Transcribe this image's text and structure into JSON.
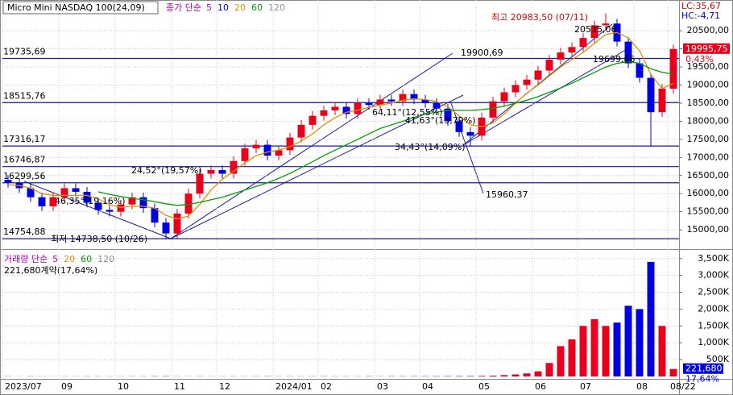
{
  "header": {
    "title": "Micro Mini NASDAQ 100(24,09)",
    "lc": "LC:35,67",
    "hc": "HC:-4,71"
  },
  "chart_data": [
    {
      "type": "candlestick",
      "legend_title": "종가 단순",
      "legend": [
        {
          "label": "5",
          "color": "#c000c0"
        },
        {
          "label": "10",
          "color": "#0000ff"
        },
        {
          "label": "20",
          "color": "#e09000"
        },
        {
          "label": "60",
          "color": "#00a000"
        },
        {
          "label": "120",
          "color": "#909090"
        }
      ],
      "categories": [
        "2023/07",
        null,
        null,
        null,
        null,
        "09",
        null,
        null,
        null,
        null,
        "10",
        null,
        null,
        null,
        null,
        "11",
        null,
        null,
        null,
        "12",
        null,
        null,
        null,
        null,
        "2024/01",
        null,
        null,
        null,
        "02",
        null,
        null,
        null,
        null,
        "03",
        null,
        null,
        null,
        "04",
        null,
        null,
        null,
        null,
        "05",
        null,
        null,
        null,
        null,
        "06",
        null,
        null,
        null,
        "07",
        null,
        null,
        null,
        null,
        "08",
        null,
        null,
        "08/22"
      ],
      "open": [
        16380,
        16300,
        16150,
        15900,
        15650,
        15900,
        16150,
        16050,
        15750,
        15550,
        15500,
        15700,
        15900,
        15600,
        15200,
        14900,
        15450,
        16000,
        16550,
        16650,
        16550,
        16900,
        17250,
        17350,
        17050,
        17200,
        17550,
        17900,
        18150,
        18300,
        18400,
        18200,
        18500,
        18450,
        18600,
        18550,
        18750,
        18600,
        18500,
        18350,
        18000,
        17700,
        17600,
        18100,
        18550,
        18800,
        19000,
        19150,
        19400,
        19700,
        19900,
        20050,
        20300,
        20650,
        20700,
        20200,
        19600,
        19200,
        18250,
        18900
      ],
      "high": [
        16510,
        16430,
        16280,
        16030,
        16030,
        16280,
        16280,
        16180,
        15880,
        15680,
        15830,
        16030,
        16030,
        15730,
        15330,
        15580,
        16130,
        16680,
        16780,
        16780,
        17030,
        17380,
        17480,
        17480,
        17330,
        17680,
        18030,
        18280,
        18430,
        18530,
        18530,
        18630,
        18630,
        18730,
        18730,
        18880,
        18880,
        18730,
        18630,
        18480,
        18130,
        17830,
        18230,
        18680,
        18930,
        19130,
        19280,
        19530,
        19830,
        20030,
        20180,
        20430,
        20780,
        20983.5,
        20830,
        20330,
        19730,
        19330,
        19030,
        20120
      ],
      "low": [
        16170,
        16020,
        15770,
        15520,
        15520,
        15770,
        15920,
        15620,
        15420,
        15370,
        15370,
        15570,
        15470,
        15070,
        14738.5,
        14770,
        15320,
        15870,
        16420,
        16420,
        16420,
        16770,
        17120,
        16920,
        16920,
        17070,
        17420,
        17770,
        18020,
        18170,
        18070,
        18070,
        18320,
        18320,
        18420,
        18420,
        18470,
        18370,
        18220,
        17870,
        17570,
        17300,
        17470,
        17970,
        18420,
        18670,
        18870,
        19020,
        19270,
        19570,
        19770,
        19920,
        20170,
        20520,
        20070,
        19470,
        19070,
        17300,
        18120,
        18770
      ],
      "close": [
        16300,
        16150,
        15900,
        15650,
        15900,
        16150,
        16050,
        15750,
        15550,
        15500,
        15700,
        15900,
        15600,
        15200,
        14900,
        15450,
        16000,
        16550,
        16650,
        16550,
        16900,
        17250,
        17350,
        17050,
        17200,
        17550,
        17900,
        18150,
        18300,
        18400,
        18200,
        18500,
        18450,
        18600,
        18550,
        18750,
        18600,
        18500,
        18350,
        18000,
        17700,
        17600,
        18100,
        18550,
        18800,
        19000,
        19150,
        19400,
        19700,
        19900,
        20050,
        20300,
        20650,
        20700,
        20200,
        19600,
        19200,
        18250,
        18900,
        19995.75
      ],
      "up_color": "#e8001c",
      "down_color": "#0000e0",
      "series": [
        {
          "color": "#e09000",
          "values": [
            16250,
            16220,
            16150,
            16000,
            15950,
            15950,
            15950,
            15950,
            15850,
            15700,
            15620,
            15650,
            15650,
            15600,
            15400,
            15300,
            15380,
            15700,
            16100,
            16400,
            16620,
            16850,
            17050,
            17150,
            17200,
            17300,
            17450,
            17650,
            17900,
            18100,
            18250,
            18300,
            18380,
            18450,
            18500,
            18580,
            18620,
            18600,
            18550,
            18400,
            18150,
            17900,
            17850,
            17950,
            18200,
            18500,
            18780,
            19000,
            19250,
            19500,
            19700,
            19900,
            20150,
            20400,
            20450,
            20300,
            19950,
            19300,
            18900,
            19050
          ]
        },
        {
          "color": "#00a000",
          "values": [
            null,
            null,
            null,
            null,
            null,
            null,
            null,
            null,
            16050,
            15980,
            15920,
            15870,
            15830,
            15780,
            15720,
            15680,
            15700,
            15760,
            15830,
            15900,
            16000,
            16100,
            16200,
            16300,
            16420,
            16560,
            16720,
            16880,
            17050,
            17200,
            17350,
            17500,
            17650,
            17800,
            17900,
            18000,
            18100,
            18200,
            18250,
            18300,
            18300,
            18300,
            18320,
            18360,
            18420,
            18500,
            18580,
            18680,
            18800,
            18920,
            19050,
            19200,
            19350,
            19500,
            19600,
            19650,
            19600,
            19450,
            19350,
            19300
          ]
        }
      ],
      "ylim": [
        14490,
        21350
      ],
      "yticks": [
        {
          "value": 15000,
          "label": "15000,00"
        },
        {
          "value": 15500,
          "label": "15500,00"
        },
        {
          "value": 16000,
          "label": "16000,00"
        },
        {
          "value": 16500,
          "label": "16500,00"
        },
        {
          "value": 17000,
          "label": "17000,00"
        },
        {
          "value": 17500,
          "label": "17500,00"
        },
        {
          "value": 18000,
          "label": "18000,00"
        },
        {
          "value": 18500,
          "label": "18500,00"
        },
        {
          "value": 19000,
          "label": "19000,00"
        },
        {
          "value": 19500,
          "label": "19500,00"
        },
        {
          "value": 20000,
          "label": "20000,00"
        },
        {
          "value": 20500,
          "label": "20500,00"
        }
      ],
      "hlines": [
        {
          "value": 19735.69,
          "label": "19735,69"
        },
        {
          "value": 18515.76,
          "label": "18515,76"
        },
        {
          "value": 17316.17,
          "label": "17316,17"
        },
        {
          "value": 16746.87,
          "label": "16746,87"
        },
        {
          "value": 16299.56,
          "label": "16299,56"
        },
        {
          "value": 14754.88,
          "label": "14754,88"
        }
      ],
      "last_price": {
        "value": 19995.75,
        "label": "19995,75"
      },
      "change_label": "0,43%",
      "high_note": "최고 20983,50 (07/11)",
      "low_note": "최저 14738,50 (10/26)",
      "annotations": [
        "19900,69",
        "15960,37",
        "20535,06",
        "19699,66",
        "24,52°(19,57%)",
        "46,35°(19,16%)",
        "34,43°(14,09%)",
        "64,11°(12,55%)",
        "41,63°(13,79%)"
      ],
      "grid": true
    },
    {
      "type": "bar",
      "legend_title": "거래량 단순",
      "legend": [
        {
          "label": "5",
          "color": "#c000c0"
        },
        {
          "label": "20",
          "color": "#e09000"
        },
        {
          "label": "60",
          "color": "#00a000"
        },
        {
          "label": "120",
          "color": "#909090"
        }
      ],
      "summary": "221,680계약(17,64%)",
      "values": [
        4000,
        3000,
        5000,
        4000,
        3000,
        5000,
        4000,
        6000,
        5000,
        4000,
        5000,
        6000,
        5000,
        7000,
        8000,
        6000,
        5000,
        6000,
        5000,
        4000,
        6000,
        5000,
        6000,
        7000,
        5000,
        6000,
        5000,
        6000,
        7000,
        6000,
        5000,
        6000,
        7000,
        6000,
        7000,
        8000,
        7000,
        8000,
        9000,
        10000,
        11000,
        12000,
        18000,
        25000,
        40000,
        60000,
        90000,
        150000,
        400000,
        900000,
        1100000,
        1500000,
        1700000,
        1500000,
        1600000,
        2100000,
        2000000,
        3400000,
        1500000,
        221680
      ],
      "last_label": "221,680",
      "last_pct": "17,64%",
      "ylim": [
        0,
        3710000
      ],
      "yticks": [
        {
          "value": 500000,
          "label": "500K"
        },
        {
          "value": 1000000,
          "label": "1,000K"
        },
        {
          "value": 1500000,
          "label": "1,500K"
        },
        {
          "value": 2000000,
          "label": "2,000K"
        },
        {
          "value": 2500000,
          "label": "2,500K"
        },
        {
          "value": 3000000,
          "label": "3,000K"
        },
        {
          "value": 3500000,
          "label": "3,500K"
        }
      ],
      "grid": true
    }
  ]
}
